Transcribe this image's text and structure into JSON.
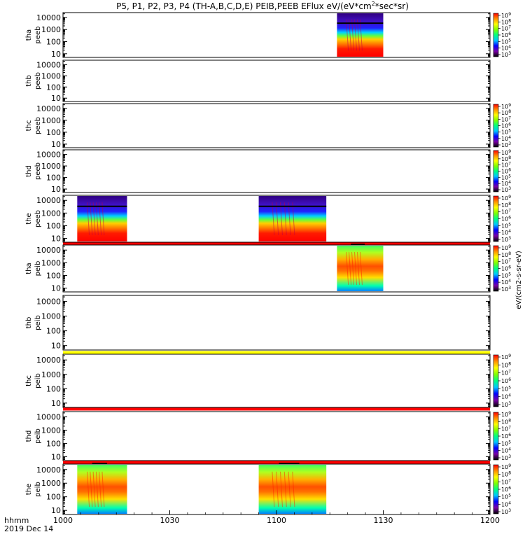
{
  "title": "P5, P1, P2, P3, P4 (TH-A,B,C,D,E) PEIB,PEEB EFlux eV/(eV*cm2*sec*sr)",
  "title_parts": {
    "main": "P5, P1, P2, P3, P4 (TH-A,B,C,D,E) PEIB,PEEB EFlux eV/(eV*cm",
    "sup": "2",
    "tail": "*sec*sr)"
  },
  "bottom_labels": {
    "fmt": "hhmm",
    "date": "2019 Dec 14"
  },
  "chart_data": {
    "type": "heatmap",
    "x_unit": "hhmm",
    "x_ticks": [
      "1000",
      "1030",
      "1100",
      "1130",
      "1200"
    ],
    "xlim": [
      "1000",
      "1200"
    ],
    "y_scale": "log",
    "y_ticks": [
      "10",
      "100",
      "1000",
      "10000"
    ],
    "grid": false,
    "colorbar_label": "eV/(cm2-s-sr-eV)",
    "panels": [
      {
        "label1": "tha",
        "label2": "peeb",
        "cb": [
          {
            "b": "9",
            "e": "3"
          },
          {
            "b": "9",
            "e": "2"
          }
        ],
        "blocks": [
          [
            "1117",
            "1130"
          ]
        ],
        "style": "electron"
      },
      {
        "label1": "thb",
        "label2": "peeb",
        "cb": [],
        "blocks": [],
        "style": "electron"
      },
      {
        "label1": "thc",
        "label2": "peeb",
        "cb": [
          {
            "b": "9",
            "e": "3"
          },
          {
            "b": "9",
            "e": "2"
          }
        ],
        "blocks": [],
        "style": "electron"
      },
      {
        "label1": "thd",
        "label2": "peeb",
        "cb": [
          {
            "b": "9",
            "e": "3"
          },
          {
            "b": "9",
            "e": "2"
          }
        ],
        "blocks": [],
        "style": "electron"
      },
      {
        "label1": "the",
        "label2": "peeb",
        "cb": [
          {
            "b": "9",
            "e": "3"
          }
        ],
        "blocks": [
          [
            "1004",
            "1018"
          ],
          [
            "1055",
            "1114"
          ]
        ],
        "style": "electron"
      },
      {
        "label1": "tha",
        "label2": "peib",
        "cb": [
          {
            "b": "9",
            "e": "3"
          }
        ],
        "blocks": [
          [
            "1117",
            "1130"
          ]
        ],
        "style": "ion"
      },
      {
        "label1": "thb",
        "label2": "peib",
        "cb": [],
        "blocks": [],
        "style": "ion"
      },
      {
        "label1": "thc",
        "label2": "peib",
        "cb": [
          {
            "b": "9",
            "e": "3"
          },
          {
            "b": "9",
            "e": "2"
          }
        ],
        "blocks": [],
        "style": "ion"
      },
      {
        "label1": "thd",
        "label2": "peib",
        "cb": [
          {
            "b": "9",
            "e": "3"
          }
        ],
        "blocks": [],
        "style": "ion"
      },
      {
        "label1": "the",
        "label2": "peib",
        "cb": [
          {
            "b": "9",
            "e": "3"
          }
        ],
        "blocks": [
          [
            "1004",
            "1018"
          ],
          [
            "1055",
            "1114"
          ]
        ],
        "style": "ion"
      }
    ],
    "separator_bars": [
      {
        "after_panel": 5,
        "color": "#ff0000"
      },
      {
        "after_panel": 6,
        "color": "#ffff00"
      },
      {
        "after_panel": 7,
        "color": "#ffff00"
      },
      {
        "after_panel": 8,
        "color": "#ff0000"
      },
      {
        "after_panel": 9,
        "color": "#ff0000"
      }
    ],
    "colorbar_gradient": [
      "#000000",
      "#7a00a8",
      "#0000ff",
      "#00c8ff",
      "#00ff80",
      "#80ff00",
      "#ffff00",
      "#ff9000",
      "#ff0000"
    ]
  }
}
